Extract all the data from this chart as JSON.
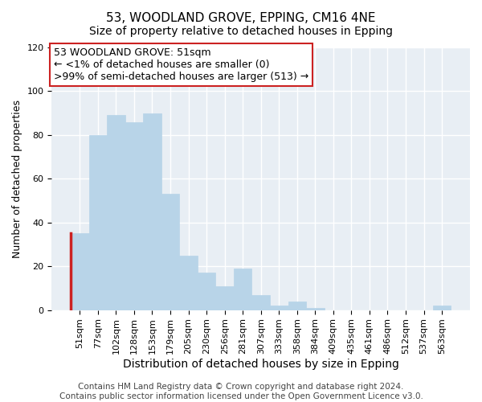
{
  "title": "53, WOODLAND GROVE, EPPING, CM16 4NE",
  "subtitle": "Size of property relative to detached houses in Epping",
  "xlabel": "Distribution of detached houses by size in Epping",
  "ylabel": "Number of detached properties",
  "bar_labels": [
    "51sqm",
    "77sqm",
    "102sqm",
    "128sqm",
    "153sqm",
    "179sqm",
    "205sqm",
    "230sqm",
    "256sqm",
    "281sqm",
    "307sqm",
    "333sqm",
    "358sqm",
    "384sqm",
    "409sqm",
    "435sqm",
    "461sqm",
    "486sqm",
    "512sqm",
    "537sqm",
    "563sqm"
  ],
  "bar_values": [
    35,
    80,
    89,
    86,
    90,
    53,
    25,
    17,
    11,
    19,
    7,
    2,
    4,
    1,
    0,
    0,
    0,
    0,
    0,
    0,
    2
  ],
  "highlight_index": 0,
  "bar_color_normal": "#b8d4e8",
  "bar_color_highlight": "#b8d4e8",
  "highlight_edge_color": "#cc2222",
  "annotation_box_text": "53 WOODLAND GROVE: 51sqm\n← <1% of detached houses are smaller (0)\n>99% of semi-detached houses are larger (513) →",
  "annotation_box_edgecolor": "#cc2222",
  "annotation_box_facecolor": "#ffffff",
  "bg_color": "#e8eef4",
  "grid_color": "#ffffff",
  "ylim": [
    0,
    120
  ],
  "yticks": [
    0,
    20,
    40,
    60,
    80,
    100,
    120
  ],
  "title_fontsize": 11,
  "subtitle_fontsize": 10,
  "xlabel_fontsize": 10,
  "ylabel_fontsize": 9,
  "tick_fontsize": 8,
  "annotation_fontsize": 9,
  "footer_fontsize": 7.5,
  "footer_line1": "Contains HM Land Registry data © Crown copyright and database right 2024.",
  "footer_line2": "Contains public sector information licensed under the Open Government Licence v3.0."
}
